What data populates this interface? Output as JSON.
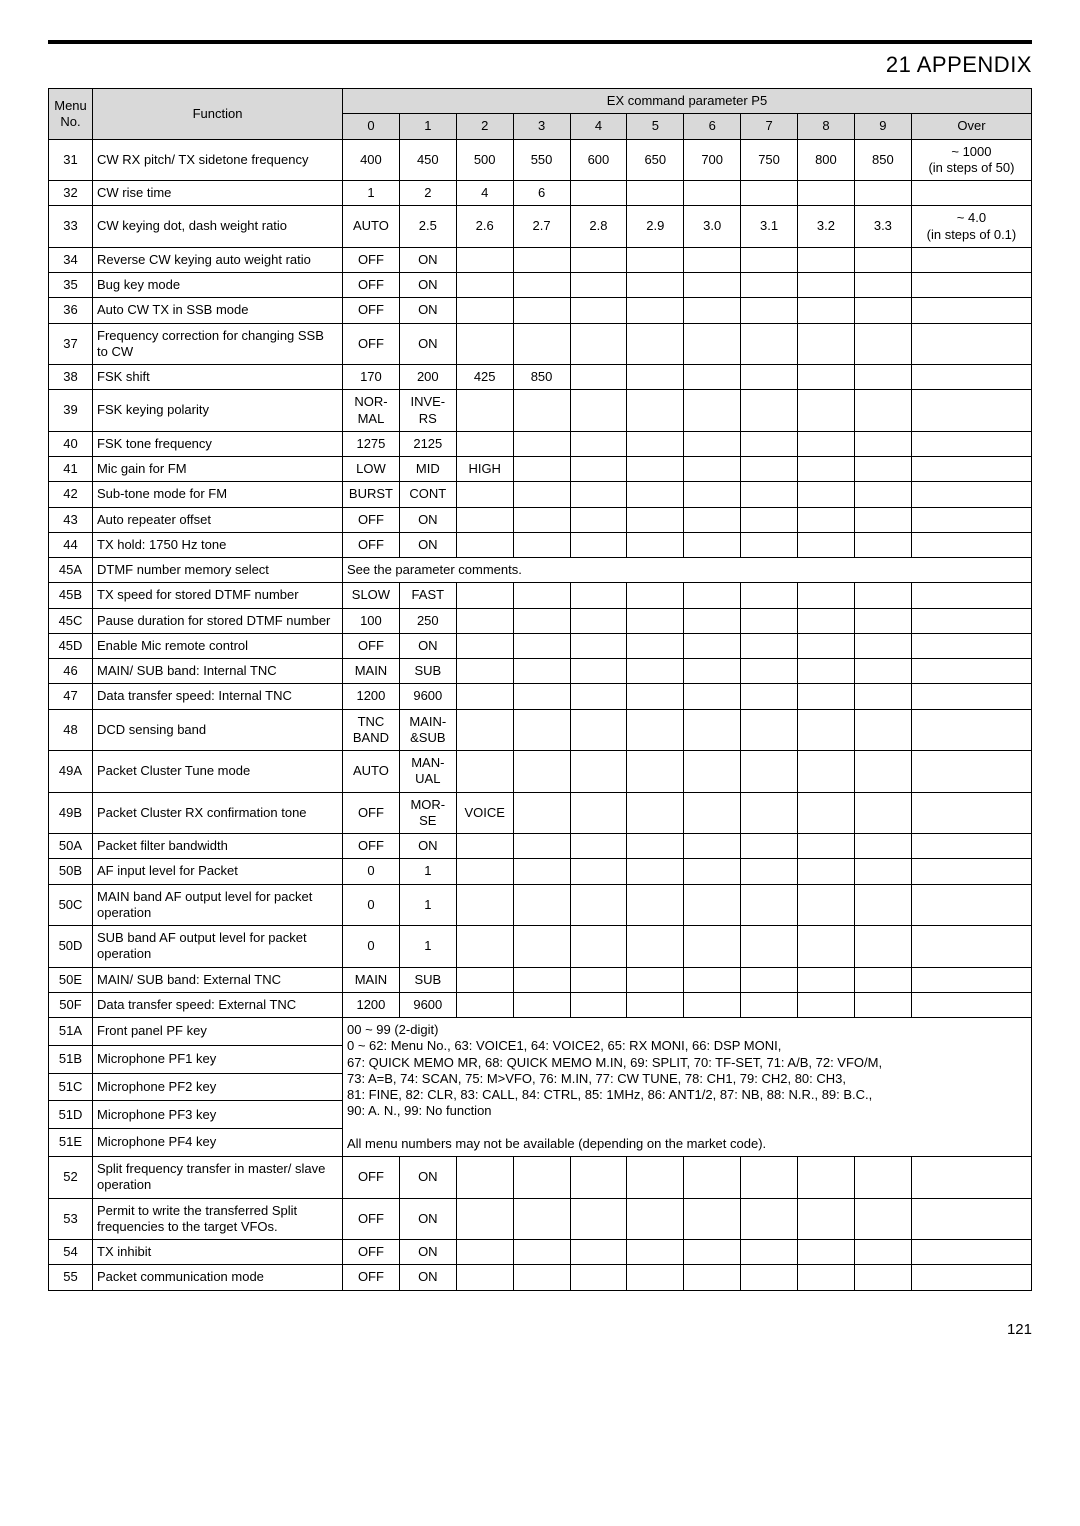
{
  "title": "21  APPENDIX",
  "pageNumber": "121",
  "headers": {
    "menuNo": "Menu No.",
    "function": "Function",
    "exParam": "EX command parameter P5",
    "cols": [
      "0",
      "1",
      "2",
      "3",
      "4",
      "5",
      "6",
      "7",
      "8",
      "9",
      "Over"
    ]
  },
  "colors": {
    "headerBg": "#d9d9d9",
    "border": "#000000",
    "text": "#000000",
    "background": "#ffffff"
  },
  "noteRow": {
    "menu": "45A",
    "func": "DTMF number memory select",
    "text": "See the parameter comments."
  },
  "pfNote": "00 ~ 99 (2-digit)\n0 ~ 62: Menu No., 63: VOICE1, 64: VOICE2, 65: RX MONI, 66: DSP MONI,\n67: QUICK MEMO MR, 68: QUICK MEMO M.IN, 69: SPLIT, 70: TF-SET, 71: A/B, 72: VFO/M,\n73: A=B, 74: SCAN, 75: M>VFO, 76: M.IN, 77: CW TUNE, 78: CH1, 79: CH2, 80: CH3,\n81: FINE, 82: CLR, 83: CALL, 84: CTRL, 85: 1MHz, 86: ANT1/2, 87: NB, 88: N.R., 89: B.C.,\n90: A. N., 99: No function\n\nAll menu numbers may not be available (depending on the market code).",
  "pfRows": [
    {
      "menu": "51A",
      "func": "Front panel PF key"
    },
    {
      "menu": "51B",
      "func": "Microphone PF1 key"
    },
    {
      "menu": "51C",
      "func": "Microphone PF2 key"
    },
    {
      "menu": "51D",
      "func": "Microphone PF3 key"
    },
    {
      "menu": "51E",
      "func": "Microphone PF4 key"
    }
  ],
  "rows": [
    {
      "menu": "31",
      "func": "CW RX pitch/ TX sidetone frequency",
      "vals": [
        "400",
        "450",
        "500",
        "550",
        "600",
        "650",
        "700",
        "750",
        "800",
        "850"
      ],
      "over": "~ 1000\n(in steps of 50)"
    },
    {
      "menu": "32",
      "func": "CW rise time",
      "vals": [
        "1",
        "2",
        "4",
        "6",
        "",
        "",
        "",
        "",
        "",
        ""
      ],
      "over": ""
    },
    {
      "menu": "33",
      "func": "CW keying dot, dash weight ratio",
      "vals": [
        "AUTO",
        "2.5",
        "2.6",
        "2.7",
        "2.8",
        "2.9",
        "3.0",
        "3.1",
        "3.2",
        "3.3"
      ],
      "over": "~ 4.0\n(in steps of 0.1)"
    },
    {
      "menu": "34",
      "func": "Reverse CW keying auto weight ratio",
      "vals": [
        "OFF",
        "ON",
        "",
        "",
        "",
        "",
        "",
        "",
        "",
        ""
      ],
      "over": ""
    },
    {
      "menu": "35",
      "func": "Bug key mode",
      "vals": [
        "OFF",
        "ON",
        "",
        "",
        "",
        "",
        "",
        "",
        "",
        ""
      ],
      "over": ""
    },
    {
      "menu": "36",
      "func": "Auto CW TX in SSB mode",
      "vals": [
        "OFF",
        "ON",
        "",
        "",
        "",
        "",
        "",
        "",
        "",
        ""
      ],
      "over": ""
    },
    {
      "menu": "37",
      "func": "Frequency correction for changing SSB to CW",
      "vals": [
        "OFF",
        "ON",
        "",
        "",
        "",
        "",
        "",
        "",
        "",
        ""
      ],
      "over": ""
    },
    {
      "menu": "38",
      "func": "FSK shift",
      "vals": [
        "170",
        "200",
        "425",
        "850",
        "",
        "",
        "",
        "",
        "",
        ""
      ],
      "over": ""
    },
    {
      "menu": "39",
      "func": "FSK keying polarity",
      "vals": [
        "NOR-\nMAL",
        "INVE-\nRS",
        "",
        "",
        "",
        "",
        "",
        "",
        "",
        ""
      ],
      "over": ""
    },
    {
      "menu": "40",
      "func": "FSK tone frequency",
      "vals": [
        "1275",
        "2125",
        "",
        "",
        "",
        "",
        "",
        "",
        "",
        ""
      ],
      "over": ""
    },
    {
      "menu": "41",
      "func": "Mic gain for FM",
      "vals": [
        "LOW",
        "MID",
        "HIGH",
        "",
        "",
        "",
        "",
        "",
        "",
        ""
      ],
      "over": ""
    },
    {
      "menu": "42",
      "func": "Sub-tone mode for FM",
      "vals": [
        "BURST",
        "CONT",
        "",
        "",
        "",
        "",
        "",
        "",
        "",
        ""
      ],
      "over": ""
    },
    {
      "menu": "43",
      "func": "Auto repeater offset",
      "vals": [
        "OFF",
        "ON",
        "",
        "",
        "",
        "",
        "",
        "",
        "",
        ""
      ],
      "over": ""
    },
    {
      "menu": "44",
      "func": "TX hold: 1750 Hz tone",
      "vals": [
        "OFF",
        "ON",
        "",
        "",
        "",
        "",
        "",
        "",
        "",
        ""
      ],
      "over": ""
    },
    {
      "menu": "45B",
      "func": "TX speed for stored DTMF number",
      "vals": [
        "SLOW",
        "FAST",
        "",
        "",
        "",
        "",
        "",
        "",
        "",
        ""
      ],
      "over": ""
    },
    {
      "menu": "45C",
      "func": "Pause duration for stored DTMF number",
      "vals": [
        "100",
        "250",
        "",
        "",
        "",
        "",
        "",
        "",
        "",
        ""
      ],
      "over": ""
    },
    {
      "menu": "45D",
      "func": "Enable Mic remote control",
      "vals": [
        "OFF",
        "ON",
        "",
        "",
        "",
        "",
        "",
        "",
        "",
        ""
      ],
      "over": ""
    },
    {
      "menu": "46",
      "func": "MAIN/ SUB band: Internal TNC",
      "vals": [
        "MAIN",
        "SUB",
        "",
        "",
        "",
        "",
        "",
        "",
        "",
        ""
      ],
      "over": ""
    },
    {
      "menu": "47",
      "func": "Data transfer speed: Internal TNC",
      "vals": [
        "1200",
        "9600",
        "",
        "",
        "",
        "",
        "",
        "",
        "",
        ""
      ],
      "over": ""
    },
    {
      "menu": "48",
      "func": "DCD sensing band",
      "vals": [
        "TNC\nBAND",
        "MAIN-\n&SUB",
        "",
        "",
        "",
        "",
        "",
        "",
        "",
        ""
      ],
      "over": ""
    },
    {
      "menu": "49A",
      "func": "Packet Cluster Tune mode",
      "vals": [
        "AUTO",
        "MAN-\nUAL",
        "",
        "",
        "",
        "",
        "",
        "",
        "",
        ""
      ],
      "over": ""
    },
    {
      "menu": "49B",
      "func": "Packet Cluster RX confirmation tone",
      "vals": [
        "OFF",
        "MOR-\nSE",
        "VOICE",
        "",
        "",
        "",
        "",
        "",
        "",
        ""
      ],
      "over": ""
    },
    {
      "menu": "50A",
      "func": "Packet filter bandwidth",
      "vals": [
        "OFF",
        "ON",
        "",
        "",
        "",
        "",
        "",
        "",
        "",
        ""
      ],
      "over": ""
    },
    {
      "menu": "50B",
      "func": "AF input level for Packet",
      "vals": [
        "0",
        "1",
        "",
        "",
        "",
        "",
        "",
        "",
        "",
        ""
      ],
      "over": ""
    },
    {
      "menu": "50C",
      "func": "MAIN band AF output level for packet operation",
      "vals": [
        "0",
        "1",
        "",
        "",
        "",
        "",
        "",
        "",
        "",
        ""
      ],
      "over": ""
    },
    {
      "menu": "50D",
      "func": "SUB band AF output level for packet operation",
      "vals": [
        "0",
        "1",
        "",
        "",
        "",
        "",
        "",
        "",
        "",
        ""
      ],
      "over": ""
    },
    {
      "menu": "50E",
      "func": "MAIN/ SUB band: External TNC",
      "vals": [
        "MAIN",
        "SUB",
        "",
        "",
        "",
        "",
        "",
        "",
        "",
        ""
      ],
      "over": ""
    },
    {
      "menu": "50F",
      "func": "Data transfer speed: External TNC",
      "vals": [
        "1200",
        "9600",
        "",
        "",
        "",
        "",
        "",
        "",
        "",
        ""
      ],
      "over": ""
    },
    {
      "menu": "52",
      "func": "Split frequency transfer in master/ slave operation",
      "vals": [
        "OFF",
        "ON",
        "",
        "",
        "",
        "",
        "",
        "",
        "",
        ""
      ],
      "over": ""
    },
    {
      "menu": "53",
      "func": "Permit to write the transferred Split frequencies to the target VFOs.",
      "vals": [
        "OFF",
        "ON",
        "",
        "",
        "",
        "",
        "",
        "",
        "",
        ""
      ],
      "over": ""
    },
    {
      "menu": "54",
      "func": "TX inhibit",
      "vals": [
        "OFF",
        "ON",
        "",
        "",
        "",
        "",
        "",
        "",
        "",
        ""
      ],
      "over": ""
    },
    {
      "menu": "55",
      "func": "Packet communication mode",
      "vals": [
        "OFF",
        "ON",
        "",
        "",
        "",
        "",
        "",
        "",
        "",
        ""
      ],
      "over": ""
    }
  ]
}
